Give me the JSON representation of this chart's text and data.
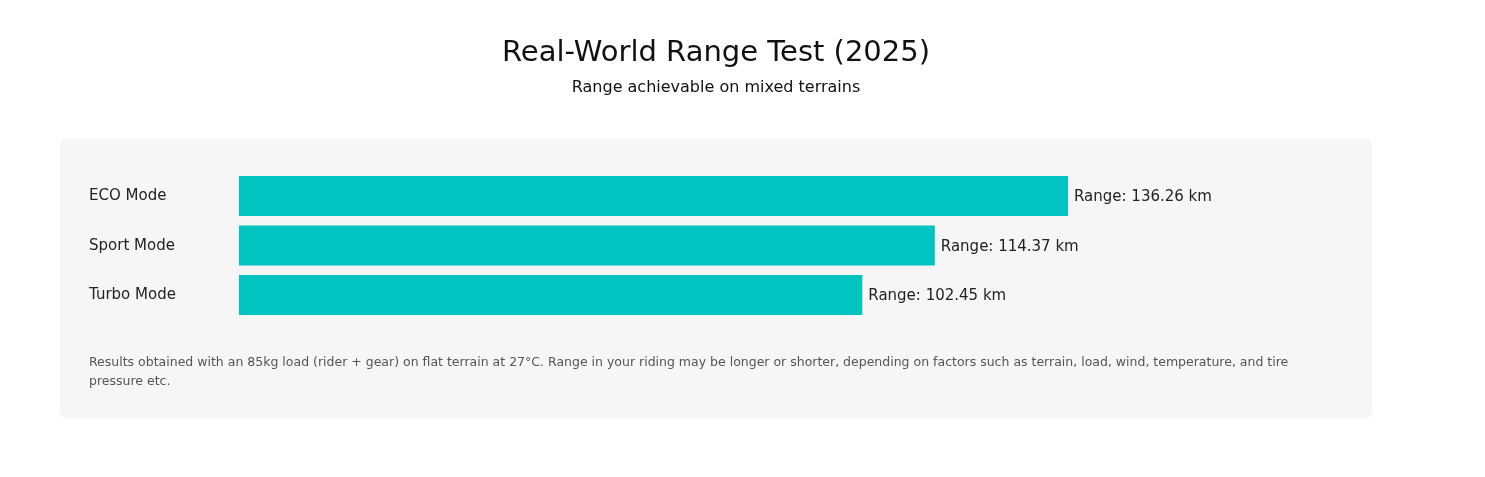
{
  "chart_data": {
    "type": "bar",
    "orientation": "horizontal",
    "title": "Real-World Range Test (2025)",
    "subtitle": "Range achievable on mixed terrains",
    "categories": [
      "ECO Mode",
      "Sport Mode",
      "Turbo Mode"
    ],
    "values": [
      136.26,
      114.37,
      102.45
    ],
    "value_labels": [
      "Range: 136.26 km",
      "Range: 114.37 km",
      "Range: 102.45 km"
    ],
    "color": "#00c4c0",
    "tick_labels": "y",
    "annotations": [
      "Results obtained with an 85kg load (rider + gear) on flat terrain at 27°C. Range in your riding may be longer or shorter, depending on factors such as terrain, load, wind, temperature, and tire pressure etc."
    ]
  }
}
